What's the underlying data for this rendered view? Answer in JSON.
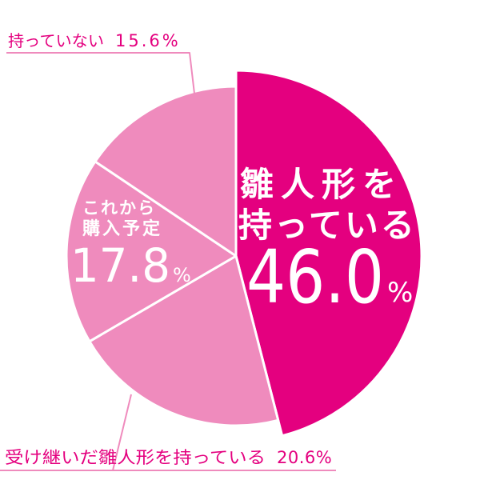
{
  "chart_data": {
    "type": "pie",
    "unit": "%",
    "slices": [
      {
        "label_lines": [
          "雛人形を",
          "持っている"
        ],
        "value": 46.0,
        "value_label": "46.0",
        "color": "#e4007f"
      },
      {
        "label_lines": [
          "受け継いだ雛人形を持っている"
        ],
        "value": 20.6,
        "value_label": "20.6",
        "color": "#ef8bbd"
      },
      {
        "label_lines": [
          "これから",
          "購入予定"
        ],
        "value": 17.8,
        "value_label": "17.8",
        "color": "#ef8bbd"
      },
      {
        "label_lines": [
          "持っていない"
        ],
        "value": 15.6,
        "value_label": "15.6",
        "color": "#ef8bbd"
      }
    ],
    "label_color": "#e4007f",
    "leader_color": "#ef8bbd",
    "separator_color": "#ffffff"
  }
}
